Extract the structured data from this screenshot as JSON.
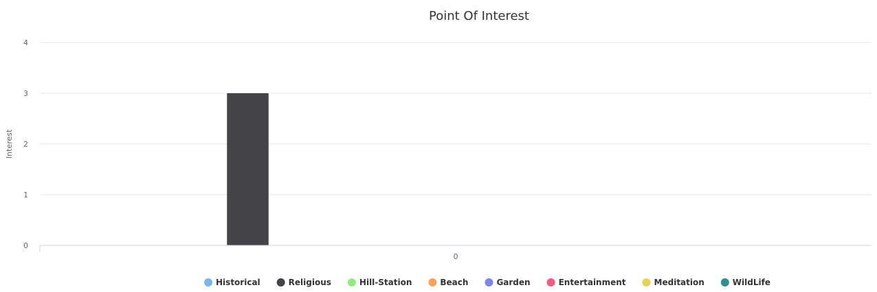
{
  "chart_data": {
    "type": "bar",
    "title": "Point Of Interest",
    "xlabel": "",
    "ylabel": "Interest",
    "ylim": [
      0,
      4
    ],
    "yticks": [
      "0",
      "1",
      "2",
      "3",
      "4"
    ],
    "categories": [
      "0"
    ],
    "grid": true,
    "legend_position": "bottom",
    "series": [
      {
        "name": "Historical",
        "color": "#7cb5ec",
        "values": [
          0
        ]
      },
      {
        "name": "Religious",
        "color": "#434348",
        "values": [
          3
        ]
      },
      {
        "name": "Hill-Station",
        "color": "#90ed7d",
        "values": [
          0
        ]
      },
      {
        "name": "Beach",
        "color": "#f7a35c",
        "values": [
          0
        ]
      },
      {
        "name": "Garden",
        "color": "#8085e9",
        "values": [
          0
        ]
      },
      {
        "name": "Entertainment",
        "color": "#f15c80",
        "values": [
          0
        ]
      },
      {
        "name": "Meditation",
        "color": "#e4d354",
        "values": [
          0
        ]
      },
      {
        "name": "WildLife",
        "color": "#2b908f",
        "values": [
          0
        ]
      }
    ]
  }
}
